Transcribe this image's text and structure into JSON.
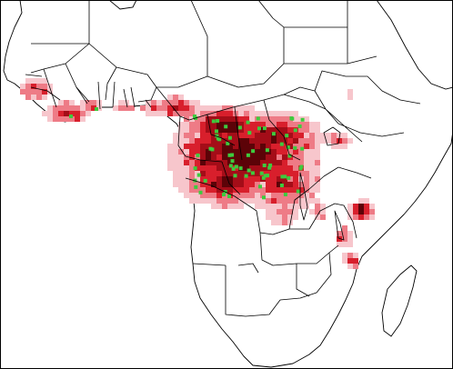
{
  "map": {
    "kind": "species distribution map (Africa)",
    "frame_visible": true,
    "land_color": "#ffffff",
    "ocean_color": "#ffffff",
    "border_color": "#000000",
    "likelihood_classes": [
      {
        "level": 1,
        "color": "#f7c6cc"
      },
      {
        "level": 2,
        "color": "#ee7b86"
      },
      {
        "level": 3,
        "color": "#d81f2c"
      },
      {
        "level": 4,
        "color": "#a40d18"
      },
      {
        "level": 5,
        "color": "#5c0308"
      }
    ],
    "occurrence_point_color": "#3ecb3e",
    "legend_shown": false,
    "title_shown": false
  }
}
